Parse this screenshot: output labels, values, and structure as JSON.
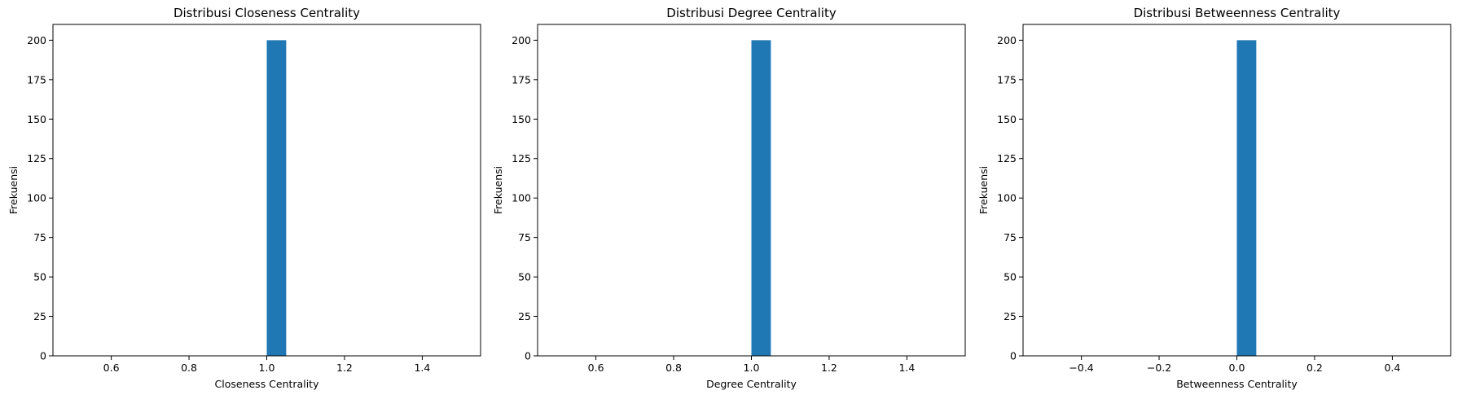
{
  "chart_data": [
    {
      "type": "bar",
      "title": "Distribusi Closeness Centrality",
      "xlabel": "Closeness Centrality",
      "ylabel": "Frekuensi",
      "bins": [
        {
          "x0": 1.0,
          "x1": 1.05,
          "count": 200
        }
      ],
      "xlim": [
        0.45,
        1.55
      ],
      "ylim": [
        0,
        210
      ],
      "xticks": [
        0.6,
        0.8,
        1.0,
        1.2,
        1.4
      ],
      "xtick_labels": [
        "0.6",
        "0.8",
        "1.0",
        "1.2",
        "1.4"
      ],
      "yticks": [
        0,
        25,
        50,
        75,
        100,
        125,
        150,
        175,
        200
      ],
      "ytick_labels": [
        "0",
        "25",
        "50",
        "75",
        "100",
        "125",
        "150",
        "175",
        "200"
      ],
      "bar_color": "#1f77b4",
      "grid": false
    },
    {
      "type": "bar",
      "title": "Distribusi Degree Centrality",
      "xlabel": "Degree Centrality",
      "ylabel": "Frekuensi",
      "bins": [
        {
          "x0": 1.0,
          "x1": 1.05,
          "count": 200
        }
      ],
      "xlim": [
        0.45,
        1.55
      ],
      "ylim": [
        0,
        210
      ],
      "xticks": [
        0.6,
        0.8,
        1.0,
        1.2,
        1.4
      ],
      "xtick_labels": [
        "0.6",
        "0.8",
        "1.0",
        "1.2",
        "1.4"
      ],
      "yticks": [
        0,
        25,
        50,
        75,
        100,
        125,
        150,
        175,
        200
      ],
      "ytick_labels": [
        "0",
        "25",
        "50",
        "75",
        "100",
        "125",
        "150",
        "175",
        "200"
      ],
      "bar_color": "#1f77b4",
      "grid": false
    },
    {
      "type": "bar",
      "title": "Distribusi Betweenness Centrality",
      "xlabel": "Betweenness Centrality",
      "ylabel": "Frekuensi",
      "bins": [
        {
          "x0": 0.0,
          "x1": 0.05,
          "count": 200
        }
      ],
      "xlim": [
        -0.55,
        0.55
      ],
      "ylim": [
        0,
        210
      ],
      "xticks": [
        -0.4,
        -0.2,
        0.0,
        0.2,
        0.4
      ],
      "xtick_labels": [
        "−0.4",
        "−0.2",
        "0.0",
        "0.2",
        "0.4"
      ],
      "yticks": [
        0,
        25,
        50,
        75,
        100,
        125,
        150,
        175,
        200
      ],
      "ytick_labels": [
        "0",
        "25",
        "50",
        "75",
        "100",
        "125",
        "150",
        "175",
        "200"
      ],
      "bar_color": "#1f77b4",
      "grid": false
    }
  ]
}
